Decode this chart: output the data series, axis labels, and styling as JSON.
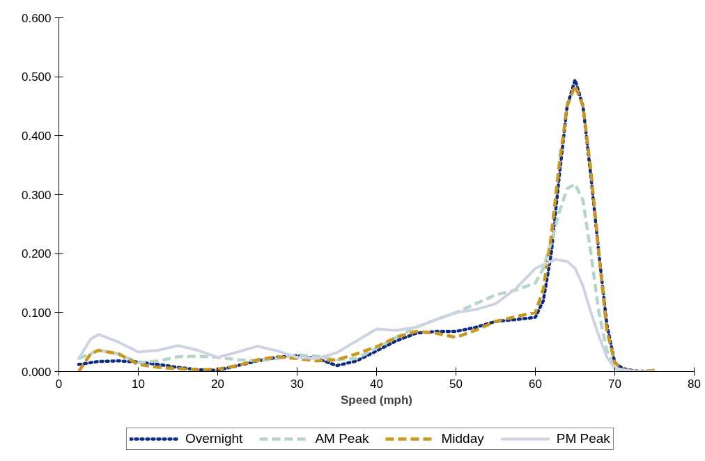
{
  "chart_data": {
    "type": "line",
    "xlabel": "Speed (mph)",
    "xlim": [
      0,
      80
    ],
    "ylim": [
      0,
      0.6
    ],
    "xticks": [
      0,
      10,
      20,
      30,
      40,
      50,
      60,
      70,
      80
    ],
    "yticks": [
      {
        "value": 0,
        "label": "0.000"
      },
      {
        "value": 0.1,
        "label": "0.100"
      },
      {
        "value": 0.2,
        "label": "0.200"
      },
      {
        "value": 0.3,
        "label": "0.300"
      },
      {
        "value": 0.4,
        "label": "0.400"
      },
      {
        "value": 0.5,
        "label": "0.500"
      },
      {
        "value": 0.6,
        "label": "0.600"
      }
    ],
    "grid": false,
    "legend": "bottom",
    "marker": "none",
    "series": [
      {
        "name": "Overnight",
        "color": "#0d2a85",
        "line_style": "dotted",
        "x": [
          2.5,
          5,
          7.5,
          10,
          12.5,
          15,
          17.5,
          20,
          22.5,
          25,
          27.5,
          30,
          32.5,
          35,
          37.5,
          40,
          42.5,
          45,
          47.5,
          50,
          52.5,
          55,
          57.5,
          60,
          61,
          62,
          63,
          64,
          65,
          66,
          67,
          68,
          69,
          70,
          71,
          72.5,
          75
        ],
        "values": [
          0.012,
          0.017,
          0.018,
          0.016,
          0.012,
          0.007,
          0.003,
          0.002,
          0.01,
          0.018,
          0.024,
          0.027,
          0.022,
          0.01,
          0.018,
          0.035,
          0.052,
          0.065,
          0.068,
          0.068,
          0.075,
          0.085,
          0.088,
          0.092,
          0.12,
          0.2,
          0.33,
          0.45,
          0.495,
          0.45,
          0.33,
          0.2,
          0.08,
          0.015,
          0.005,
          0.001,
          0.0
        ]
      },
      {
        "name": "AM Peak",
        "color": "#b5d5c9",
        "line_style": "dashed",
        "x": [
          2.5,
          5,
          7.5,
          10,
          12.5,
          15,
          17.5,
          20,
          22.5,
          25,
          27.5,
          30,
          32.5,
          35,
          37.5,
          40,
          42.5,
          45,
          47.5,
          50,
          52.5,
          55,
          57.5,
          60,
          61,
          62,
          63,
          64,
          65,
          66,
          67,
          68,
          69,
          70,
          72.5
        ],
        "values": [
          0.022,
          0.036,
          0.03,
          0.015,
          0.018,
          0.025,
          0.026,
          0.024,
          0.02,
          0.018,
          0.022,
          0.028,
          0.026,
          0.02,
          0.022,
          0.04,
          0.058,
          0.075,
          0.088,
          0.1,
          0.115,
          0.13,
          0.138,
          0.15,
          0.175,
          0.22,
          0.27,
          0.31,
          0.318,
          0.29,
          0.2,
          0.1,
          0.035,
          0.005,
          0.0
        ]
      },
      {
        "name": "Midday",
        "color": "#c9961f",
        "line_style": "dashed",
        "x": [
          2.5,
          4,
          5,
          7.5,
          10,
          12.5,
          15,
          17.5,
          20,
          22.5,
          25,
          27.5,
          30,
          32.5,
          35,
          37.5,
          40,
          42.5,
          45,
          47.5,
          50,
          52.5,
          55,
          57.5,
          60,
          61,
          62,
          63,
          64,
          65,
          66,
          67,
          68,
          69,
          70,
          71,
          73,
          75
        ],
        "values": [
          0.0,
          0.03,
          0.036,
          0.03,
          0.012,
          0.007,
          0.005,
          0.003,
          0.004,
          0.01,
          0.02,
          0.025,
          0.022,
          0.018,
          0.02,
          0.03,
          0.042,
          0.058,
          0.068,
          0.065,
          0.058,
          0.07,
          0.085,
          0.093,
          0.1,
          0.14,
          0.23,
          0.35,
          0.45,
          0.485,
          0.45,
          0.34,
          0.2,
          0.07,
          0.015,
          0.003,
          0.0,
          0.002
        ]
      },
      {
        "name": "PM Peak",
        "color": "#cdd3e3",
        "line_style": "solid",
        "x": [
          2.5,
          4,
          5,
          7.5,
          10,
          12.5,
          15,
          17.5,
          20,
          22.5,
          25,
          27.5,
          30,
          32.5,
          35,
          37.5,
          40,
          42.5,
          45,
          47.5,
          50,
          52.5,
          55,
          57.5,
          60,
          62.5,
          64,
          65,
          66,
          67,
          68,
          69,
          70,
          72.5,
          75
        ],
        "values": [
          0.022,
          0.055,
          0.063,
          0.05,
          0.033,
          0.036,
          0.044,
          0.036,
          0.024,
          0.033,
          0.043,
          0.035,
          0.024,
          0.022,
          0.032,
          0.052,
          0.072,
          0.07,
          0.075,
          0.088,
          0.1,
          0.105,
          0.115,
          0.14,
          0.175,
          0.19,
          0.187,
          0.175,
          0.145,
          0.1,
          0.06,
          0.025,
          0.005,
          0.0,
          0.0
        ]
      }
    ]
  }
}
